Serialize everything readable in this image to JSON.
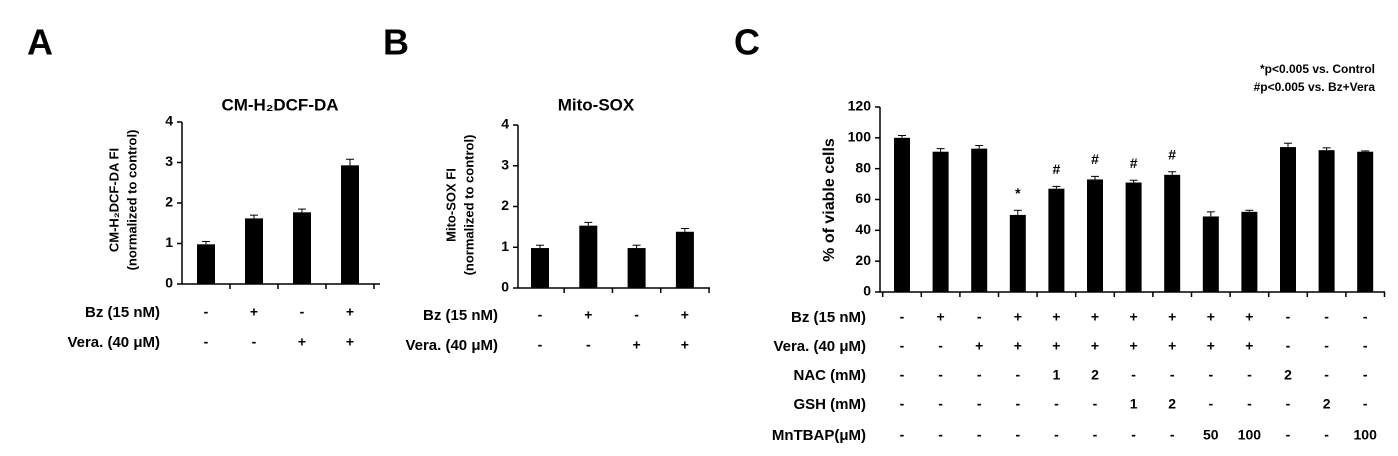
{
  "chart_data": [
    {
      "type": "bar",
      "panel": "A",
      "title": "CM-H₂DCF-DA",
      "ylabel": [
        "CM-H₂DCF-DA FI",
        "(normalized to control)"
      ],
      "values": [
        0.98,
        1.62,
        1.77,
        2.93
      ],
      "errors": [
        0.07,
        0.08,
        0.08,
        0.15
      ],
      "color": "#000000",
      "ylim": [
        0,
        4
      ],
      "yticks": [
        0,
        1,
        2,
        3,
        4
      ],
      "treatments": [
        {
          "label": "Bz (15 nM)",
          "cells": [
            "-",
            "+",
            "-",
            "+"
          ]
        },
        {
          "label": "Vera. (40 μM)",
          "cells": [
            "-",
            "-",
            "+",
            "+"
          ]
        }
      ]
    },
    {
      "type": "bar",
      "panel": "B",
      "title": "Mito-SOX",
      "ylabel": [
        "Mito-SOX FI",
        "(normalized to control)"
      ],
      "values": [
        0.98,
        1.53,
        0.98,
        1.38
      ],
      "errors": [
        0.07,
        0.08,
        0.07,
        0.08
      ],
      "color": "#000000",
      "ylim": [
        0,
        4
      ],
      "yticks": [
        0,
        1,
        2,
        3,
        4
      ],
      "treatments": [
        {
          "label": "Bz (15 nM)",
          "cells": [
            "-",
            "+",
            "-",
            "+"
          ]
        },
        {
          "label": "Vera. (40 μM)",
          "cells": [
            "-",
            "-",
            "+",
            "+"
          ]
        }
      ]
    },
    {
      "type": "bar",
      "panel": "C",
      "ylabel": [
        "% of viable cells"
      ],
      "values": [
        100,
        91,
        93,
        50,
        67,
        73,
        71,
        76,
        49,
        52,
        94,
        92,
        91
      ],
      "errors": [
        1.5,
        2,
        2,
        3,
        1.5,
        2,
        1.5,
        2,
        3,
        1,
        2.5,
        1.5,
        0.5
      ],
      "markers": [
        null,
        null,
        null,
        "*",
        "#",
        "#",
        "#",
        "#",
        null,
        null,
        null,
        null,
        null
      ],
      "legend": [
        "*p<0.005 vs. Control",
        "#p<0.005 vs. Bz+Vera"
      ],
      "color": "#000000",
      "ylim": [
        0,
        120
      ],
      "yticks": [
        0,
        20,
        40,
        60,
        80,
        100,
        120
      ],
      "treatments": [
        {
          "label": "Bz (15 nM)",
          "cells": [
            "-",
            "+",
            "-",
            "+",
            "+",
            "+",
            "+",
            "+",
            "+",
            "+",
            "-",
            "-",
            "-"
          ]
        },
        {
          "label": "Vera. (40 μM)",
          "cells": [
            "-",
            "-",
            "+",
            "+",
            "+",
            "+",
            "+",
            "+",
            "+",
            "+",
            "-",
            "-",
            "-"
          ]
        },
        {
          "label": "NAC (mM)",
          "cells": [
            "-",
            "-",
            "-",
            "-",
            "1",
            "2",
            "-",
            "-",
            "-",
            "-",
            "2",
            "-",
            "-"
          ]
        },
        {
          "label": "GSH (mM)",
          "cells": [
            "-",
            "-",
            "-",
            "-",
            "-",
            "-",
            "1",
            "2",
            "-",
            "-",
            "-",
            "2",
            "-"
          ]
        },
        {
          "label": "MnTBAP(μM)",
          "cells": [
            "-",
            "-",
            "-",
            "-",
            "-",
            "-",
            "-",
            "-",
            "50",
            "100",
            "-",
            "-",
            "100"
          ]
        }
      ]
    }
  ]
}
